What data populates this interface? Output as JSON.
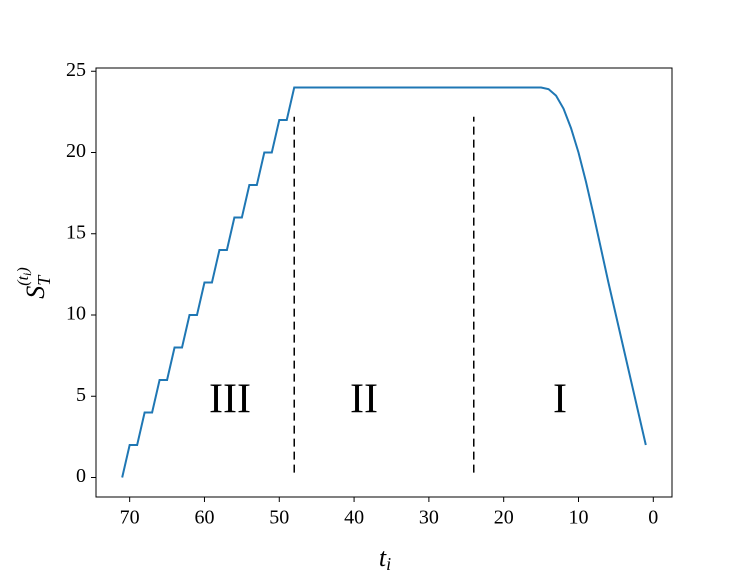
{
  "chart_data": {
    "type": "line",
    "xlabel": {
      "base": "t",
      "sub": "i"
    },
    "ylabel": {
      "base": "S",
      "sub": "T",
      "sup": "(t",
      "sup_sub": "i",
      "sup_close": ")"
    },
    "x": [
      71,
      70,
      69,
      68,
      67,
      66,
      65,
      64,
      63,
      62,
      61,
      60,
      59,
      58,
      57,
      56,
      55,
      54,
      53,
      52,
      51,
      50,
      49,
      48,
      47,
      46,
      45,
      44,
      43,
      42,
      41,
      40,
      39,
      38,
      37,
      36,
      35,
      34,
      33,
      32,
      31,
      30,
      29,
      28,
      27,
      26,
      25,
      24,
      23,
      22,
      21,
      20,
      19,
      18,
      17,
      16,
      15,
      14,
      13,
      12,
      11,
      10,
      9,
      8,
      7,
      6,
      5,
      4,
      3,
      2,
      1
    ],
    "series": [
      {
        "color": "#1f77b4",
        "values": [
          0,
          2,
          2,
          4,
          4,
          6,
          6,
          8,
          8,
          10,
          10,
          12,
          12,
          14,
          14,
          16,
          16,
          18,
          18,
          20,
          20,
          22,
          22,
          24,
          24,
          24,
          24,
          24,
          24,
          24,
          24,
          24,
          24,
          24,
          24,
          24,
          24,
          24,
          24,
          24,
          24,
          24,
          24,
          24,
          24,
          24,
          24,
          24,
          24,
          24,
          24,
          24,
          24,
          24,
          24,
          24,
          24,
          23.9,
          23.5,
          22.7,
          21.5,
          20,
          18.2,
          16.2,
          14.1,
          12,
          10,
          8,
          6,
          4,
          2
        ]
      }
    ],
    "vlines": [
      48,
      24
    ],
    "annotations": [
      "III",
      "II",
      "I"
    ],
    "xlim": [
      74.5,
      -2.5
    ],
    "xticks": [
      70,
      60,
      50,
      40,
      30,
      20,
      10,
      0
    ],
    "ylim": [
      -1.2,
      25.2
    ],
    "yticks": [
      0,
      5,
      10,
      15,
      20,
      25
    ]
  }
}
